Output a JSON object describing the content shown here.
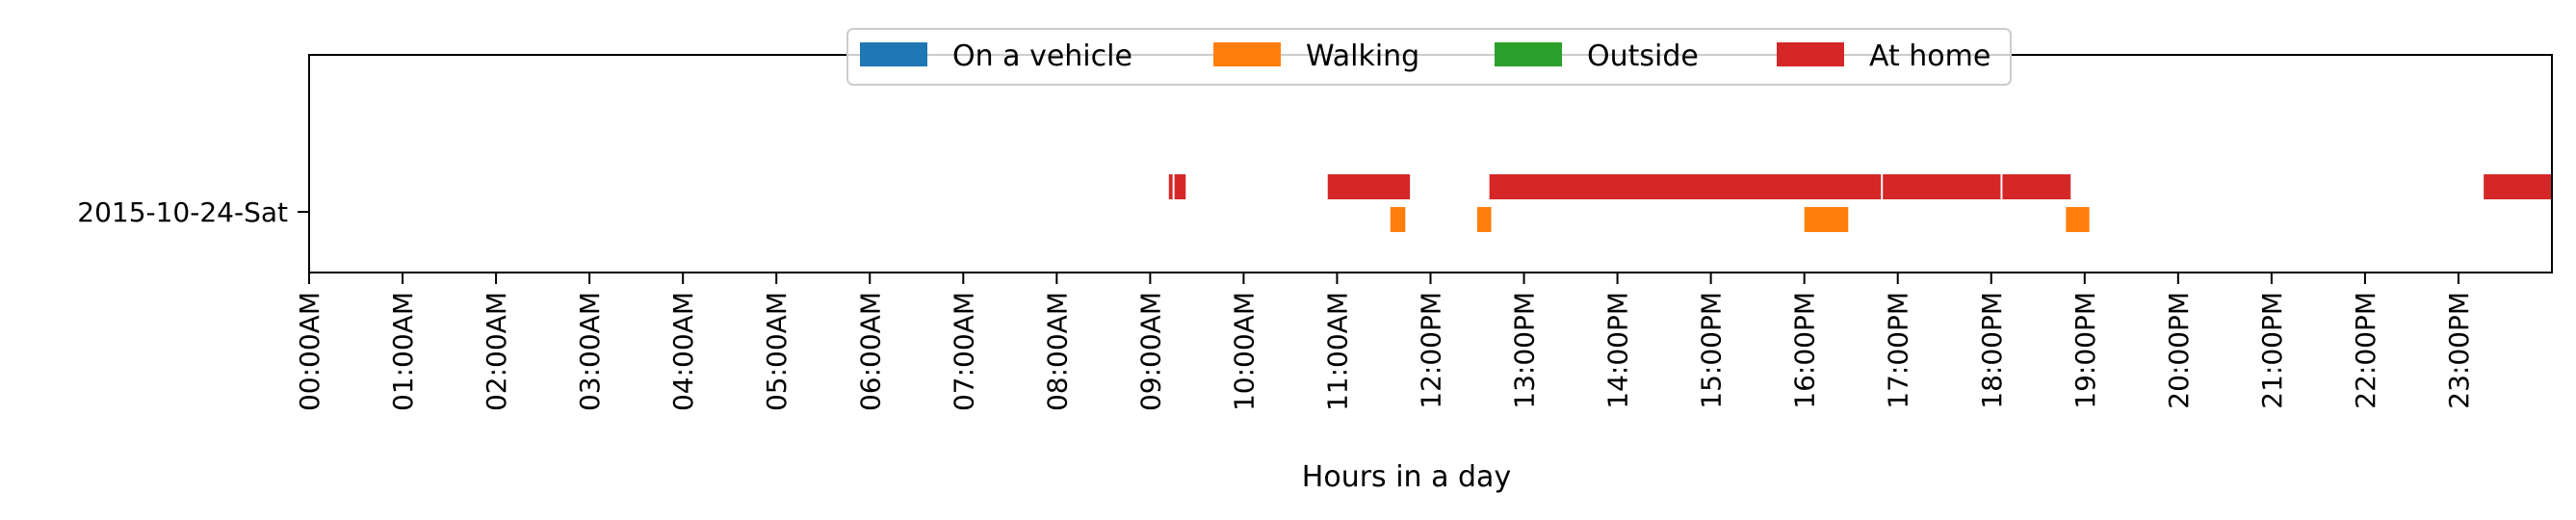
{
  "chart_data": {
    "type": "bar",
    "orientation": "horizontal-timeline",
    "xlabel": "Hours in a day",
    "ylabel": "",
    "xlim": [
      0,
      24
    ],
    "grid": false,
    "legend_placement": "top-center",
    "categories": [
      "2015-10-24-Sat"
    ],
    "x_ticks": [
      {
        "value": 0,
        "label": "00:00AM"
      },
      {
        "value": 1,
        "label": "01:00AM"
      },
      {
        "value": 2,
        "label": "02:00AM"
      },
      {
        "value": 3,
        "label": "03:00AM"
      },
      {
        "value": 4,
        "label": "04:00AM"
      },
      {
        "value": 5,
        "label": "05:00AM"
      },
      {
        "value": 6,
        "label": "06:00AM"
      },
      {
        "value": 7,
        "label": "07:00AM"
      },
      {
        "value": 8,
        "label": "08:00AM"
      },
      {
        "value": 9,
        "label": "09:00AM"
      },
      {
        "value": 10,
        "label": "10:00AM"
      },
      {
        "value": 11,
        "label": "11:00AM"
      },
      {
        "value": 12,
        "label": "12:00PM"
      },
      {
        "value": 13,
        "label": "13:00PM"
      },
      {
        "value": 14,
        "label": "14:00PM"
      },
      {
        "value": 15,
        "label": "15:00PM"
      },
      {
        "value": 16,
        "label": "16:00PM"
      },
      {
        "value": 17,
        "label": "17:00PM"
      },
      {
        "value": 18,
        "label": "18:00PM"
      },
      {
        "value": 19,
        "label": "19:00PM"
      },
      {
        "value": 20,
        "label": "20:00PM"
      },
      {
        "value": 21,
        "label": "21:00PM"
      },
      {
        "value": 22,
        "label": "22:00PM"
      },
      {
        "value": 23,
        "label": "23:00PM"
      }
    ],
    "series": [
      {
        "name": "On a vehicle",
        "color": "#1f77b4",
        "segments": []
      },
      {
        "name": "Walking",
        "color": "#ff7f0e",
        "segments": [
          [
            11.57,
            11.73
          ],
          [
            12.5,
            12.65
          ],
          [
            16.0,
            16.47
          ],
          [
            18.8,
            19.05
          ]
        ]
      },
      {
        "name": "Outside",
        "color": "#2ca02c",
        "segments": []
      },
      {
        "name": "At home",
        "color": "#d62728",
        "segments": [
          [
            9.2,
            9.24
          ],
          [
            9.26,
            9.38
          ],
          [
            10.9,
            11.78
          ],
          [
            12.63,
            16.82
          ],
          [
            16.84,
            18.1
          ],
          [
            18.12,
            18.85
          ],
          [
            23.27,
            24.0
          ]
        ]
      }
    ]
  }
}
